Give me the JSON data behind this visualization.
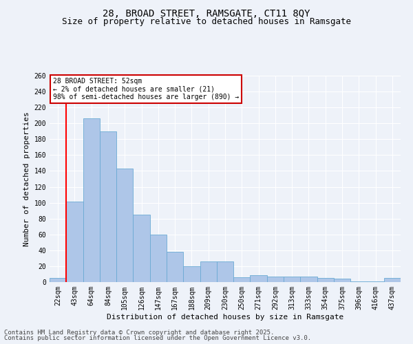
{
  "title1": "28, BROAD STREET, RAMSGATE, CT11 8QY",
  "title2": "Size of property relative to detached houses in Ramsgate",
  "xlabel": "Distribution of detached houses by size in Ramsgate",
  "ylabel": "Number of detached properties",
  "categories": [
    "22sqm",
    "43sqm",
    "64sqm",
    "84sqm",
    "105sqm",
    "126sqm",
    "147sqm",
    "167sqm",
    "188sqm",
    "209sqm",
    "230sqm",
    "250sqm",
    "271sqm",
    "292sqm",
    "313sqm",
    "333sqm",
    "354sqm",
    "375sqm",
    "396sqm",
    "416sqm",
    "437sqm"
  ],
  "values": [
    5,
    101,
    206,
    190,
    143,
    85,
    60,
    38,
    20,
    26,
    26,
    6,
    9,
    7,
    7,
    7,
    5,
    4,
    1,
    1,
    5
  ],
  "bar_color": "#aec6e8",
  "bar_edge_color": "#6aaad4",
  "redline_index": 1,
  "annotation_text": "28 BROAD STREET: 52sqm\n← 2% of detached houses are smaller (21)\n98% of semi-detached houses are larger (890) →",
  "annotation_box_color": "#ffffff",
  "annotation_box_edge": "#cc0000",
  "ylim": [
    0,
    260
  ],
  "yticks": [
    0,
    20,
    40,
    60,
    80,
    100,
    120,
    140,
    160,
    180,
    200,
    220,
    240,
    260
  ],
  "footer1": "Contains HM Land Registry data © Crown copyright and database right 2025.",
  "footer2": "Contains public sector information licensed under the Open Government Licence v3.0.",
  "bg_color": "#eef2f9",
  "grid_color": "#ffffff",
  "title_fontsize": 10,
  "subtitle_fontsize": 9,
  "tick_fontsize": 7,
  "ylabel_fontsize": 8,
  "xlabel_fontsize": 8,
  "footer_fontsize": 6.5
}
